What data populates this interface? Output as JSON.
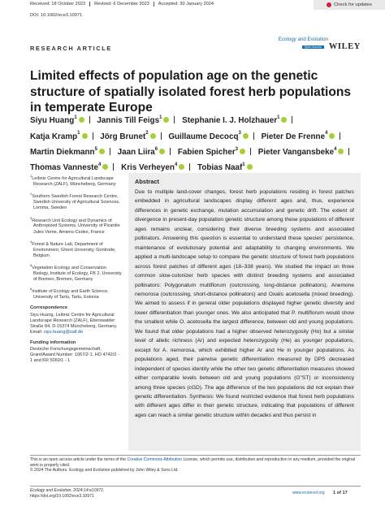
{
  "header": {
    "received": "Received: 18 October 2023",
    "revised": "Revised: 6 December 2023",
    "accepted": "Accepted: 30 January 2024",
    "doi": "DOI: 10.1002/ece3.10971",
    "check_updates": "Check for updates",
    "article_type": "RESEARCH ARTICLE",
    "journal_logo": "Ecology and Evolution",
    "open_access": "Open Access",
    "publisher": "WILEY"
  },
  "title": "Limited effects of population age on the genetic structure of spatially isolated forest herb populations in temperate Europe",
  "authors": [
    {
      "name": "Siyu Huang",
      "aff": "1"
    },
    {
      "name": "Jannis Till Feigs",
      "aff": "1"
    },
    {
      "name": "Stephanie I. J. Holzhauer",
      "aff": "1"
    },
    {
      "name": "Katja Kramp",
      "aff": "1"
    },
    {
      "name": "Jörg Brunet",
      "aff": "2"
    },
    {
      "name": "Guillaume Decocq",
      "aff": "3"
    },
    {
      "name": "Pieter De Frenne",
      "aff": "4"
    },
    {
      "name": "Martin Diekmann",
      "aff": "5"
    },
    {
      "name": "Jaan Liira",
      "aff": "6"
    },
    {
      "name": "Fabien Spicher",
      "aff": "3"
    },
    {
      "name": "Pieter Vangansbeke",
      "aff": "4"
    },
    {
      "name": "Thomas Vanneste",
      "aff": "4"
    },
    {
      "name": "Kris Verheyen",
      "aff": "4"
    },
    {
      "name": "Tobias Naaf",
      "aff": "1"
    }
  ],
  "affiliations": [
    {
      "number": "1",
      "text": "Leibniz Centre for Agricultural Landscape Research (ZALF), Müncheberg, Germany"
    },
    {
      "number": "2",
      "text": "Southern Swedish Forest Research Centre, Swedish University of Agricultural Sciences, Lomma, Sweden"
    },
    {
      "number": "3",
      "text": "Research Unit Ecology and Dynamics of Anthropized Systems, University of Picardie Jules Verne, Amiens-Cedex, France"
    },
    {
      "number": "4",
      "text": "Forest & Nature Lab, Department of Environment, Ghent University, Gontrode, Belgium"
    },
    {
      "number": "5",
      "text": "Vegetation Ecology and Conservation Biology, Institute of Ecology, FB 2, University of Bremen, Bremen, Germany"
    },
    {
      "number": "6",
      "text": "Institute of Ecology and Earth Science, University of Tartu, Tartu, Estonia"
    }
  ],
  "correspondence": {
    "heading": "Correspondence",
    "text": "Siyu Huang, Leibniz Centre for Agricultural Landscape Research (ZALF), Eberswalder Straße 84, D-15374 Müncheberg, Germany.",
    "email_label": "Email:",
    "email": "siyu.huang@zalf.de"
  },
  "funding": {
    "heading": "Funding information",
    "text": "Deutsche Forschungsgemeinschaft, Grant/Award Number: 1067/2-1, HO 4742/2 - 1 and KR 5060/1 - 1"
  },
  "abstract": {
    "heading": "Abstract",
    "text": "Due to multiple land-cover changes, forest herb populations residing in forest patches embedded in agricultural landscapes display different ages and, thus, experience differences in genetic exchange, mutation accumulation and genetic drift. The extent of divergence in present-day population genetic structure among these populations of different ages remains unclear, considering their diverse breeding systems and associated pollinators. Answering this question is essential to understand these species' persistence, maintenance of evolutionary potential and adaptability to changing environments. We applied a multi-landscape setup to compare the genetic structure of forest herb populations across forest patches of different ages (18–338 years). We studied the impact on three common slow-colonizer herb species with distinct breeding systems and associated pollinators: Polygonatum multiflorum (outcrossing, long-distance pollinators), Anemone nemorosa (outcrossing, short-distance pollinators) and Oxalis acetosella (mixed breeding). We aimed to assess if in general older populations displayed higher genetic diversity and lower differentiation than younger ones. We also anticipated that P. multiflorum would show the smallest while O. acetosella the largest difference, between old and young populations. We found that older populations had a higher observed heterozygosity (Ho) but a similar level of allelic richness (Ar) and expected heterozygosity (He) as younger populations, except for A. nemorosa, which exhibited higher Ar and He in younger populations. As populations aged, their pairwise genetic differentiation measured by DPS decreased independent of species identity while the other two genetic differentiation measures showed either comparable levels between old and young populations (G''ST) or inconsistency among three species (cGD). The age difference of the two populations did not explain their genetic differentiation. Synthesis: We found restricted evidence that forest herb populations with different ages differ in their genetic structure, indicating that populations of different ages can reach a similar genetic structure within decades and thus persist in"
  },
  "footer": {
    "license_pre": "This is an open access article under the terms of the ",
    "license_link": "Creative Commons Attribution",
    "license_post": " License, which permits use, distribution and reproduction in any medium, provided the original work is properly cited.",
    "copyright": "© 2024 The Authors. Ecology and Evolution published by John Wiley & Sons Ltd.",
    "citation": "Ecology and Evolution. 2024;14:e10971.",
    "doi_url": "https://doi.org/10.1002/ece3.10971",
    "website": "www.ecolevol.org",
    "page": "1 of 17"
  }
}
